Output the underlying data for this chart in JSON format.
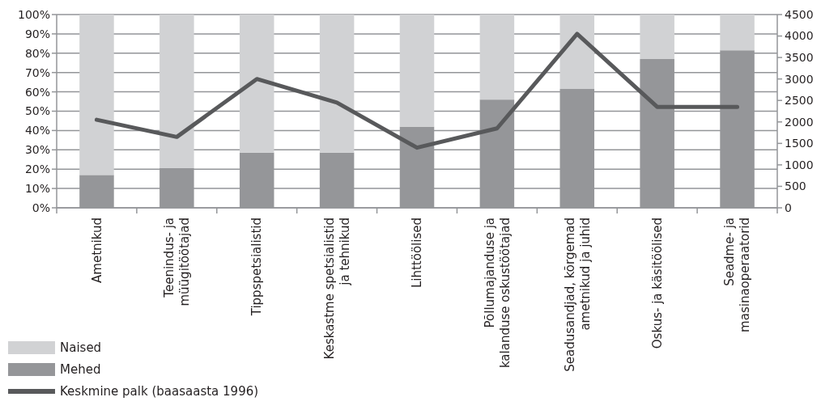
{
  "chart_data": {
    "type": "bar",
    "stacked": true,
    "categories": [
      "Ametnikud",
      "Teenindus- ja\nmüügitöötajad",
      "Tippspetsialistid",
      "Keskastme spetsialistid\nja tehnikud",
      "Lihttöölised",
      "Põllumajanduse ja\nkalanduse oskustöötajad",
      "Seadusandjad, kõrgemad\nametnikud ja juhid",
      "Oskus- ja käsitöölised",
      "Seadme- ja\nmasinaoperaatorid"
    ],
    "series": [
      {
        "name": "Mehed",
        "color": "#959699",
        "values": [
          17,
          20.5,
          28.5,
          28.5,
          42,
          56,
          61.5,
          77,
          81.5
        ]
      },
      {
        "name": "Naised",
        "color": "#d1d2d4",
        "values": [
          83,
          79.5,
          71.5,
          71.5,
          58,
          44,
          38.5,
          23,
          18.5
        ]
      },
      {
        "name": "Keskmine palk (baasaasta 1996)",
        "type": "line",
        "axis": "y2",
        "color": "#58595b",
        "values": [
          2050,
          1650,
          3000,
          2450,
          1400,
          1850,
          4050,
          2350,
          2350
        ]
      }
    ],
    "ylim": [
      0,
      100
    ],
    "yticks": [
      {
        "value": 0,
        "label": "0%"
      },
      {
        "value": 10,
        "label": "10%"
      },
      {
        "value": 20,
        "label": "20%"
      },
      {
        "value": 30,
        "label": "30%"
      },
      {
        "value": 40,
        "label": "40%"
      },
      {
        "value": 50,
        "label": "50%"
      },
      {
        "value": 60,
        "label": "60%"
      },
      {
        "value": 70,
        "label": "70%"
      },
      {
        "value": 80,
        "label": "80%"
      },
      {
        "value": 90,
        "label": "90%"
      },
      {
        "value": 100,
        "label": "100%"
      }
    ],
    "y2lim": [
      0,
      4500
    ],
    "y2ticks": [
      0,
      500,
      1000,
      1500,
      2000,
      2500,
      3000,
      3500,
      4000,
      4500
    ],
    "grid": "y",
    "legend": "bottom left"
  }
}
